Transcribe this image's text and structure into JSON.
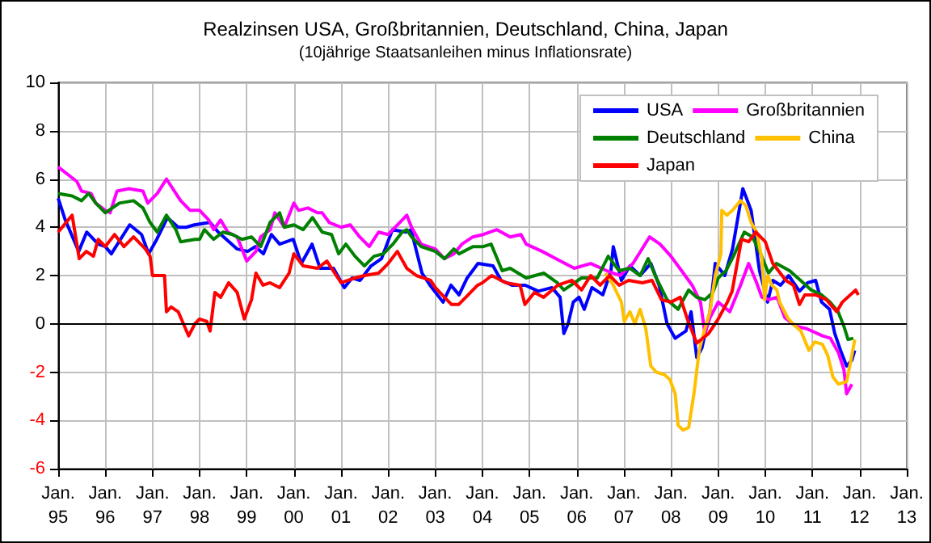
{
  "chart_data": {
    "type": "line",
    "title": "Realzinsen USA, Großbritannien, Deutschland, China, Japan",
    "subtitle": "(10jährige Staatsanleihen minus Inflationsrate)",
    "xlim": [
      "1995-01-01",
      "2013-01-01"
    ],
    "xticks": [
      {
        "value": "1995-01-01",
        "label": "Jan.\n95"
      },
      {
        "value": "1996-01-01",
        "label": "Jan.\n96"
      },
      {
        "value": "1997-01-01",
        "label": "Jan.\n97"
      },
      {
        "value": "1998-01-01",
        "label": "Jan.\n98"
      },
      {
        "value": "1999-01-01",
        "label": "Jan.\n99"
      },
      {
        "value": "2000-01-01",
        "label": "Jan.\n00"
      },
      {
        "value": "2001-01-01",
        "label": "Jan.\n01"
      },
      {
        "value": "2002-01-01",
        "label": "Jan.\n02"
      },
      {
        "value": "2003-01-01",
        "label": "Jan.\n03"
      },
      {
        "value": "2004-01-01",
        "label": "Jan.\n04"
      },
      {
        "value": "2005-01-01",
        "label": "Jan.\n05"
      },
      {
        "value": "2006-01-01",
        "label": "Jan.\n06"
      },
      {
        "value": "2007-01-01",
        "label": "Jan.\n07"
      },
      {
        "value": "2008-01-01",
        "label": "Jan.\n08"
      },
      {
        "value": "2009-01-01",
        "label": "Jan.\n09"
      },
      {
        "value": "2010-01-01",
        "label": "Jan.\n10"
      },
      {
        "value": "2011-01-01",
        "label": "Jan.\n11"
      },
      {
        "value": "2012-01-01",
        "label": "Jan.\n12"
      },
      {
        "value": "2013-01-01",
        "label": "Jan.\n13"
      }
    ],
    "ylim": [
      -6,
      10
    ],
    "yticks": [
      -6,
      -4,
      -2,
      0,
      2,
      4,
      6,
      8,
      10
    ],
    "grid": true,
    "legend": "top right",
    "marker": "none",
    "line_style": "solid",
    "ref_lines": [
      {
        "axis": "y",
        "value": 0,
        "color": "#000000"
      }
    ],
    "series": [
      {
        "name": "USA",
        "color": "#0000ff",
        "x": [
          "1995-01-01",
          "1995-02-25",
          "1995-06-09",
          "1995-08-10",
          "1995-11-07",
          "1996-01-01",
          "1996-02-17",
          "1996-07-08",
          "1996-10-08",
          "1996-12-02",
          "1997-02-03",
          "1997-04-26",
          "1997-07-19",
          "1997-09-20",
          "1997-11-21",
          "1998-03-23",
          "1998-05-25",
          "1998-10-19",
          "1999-01-08",
          "1999-03-09",
          "1999-05-10",
          "1999-07-11",
          "1999-09-13",
          "1999-12-27",
          "2000-02-28",
          "2000-05-21",
          "2000-07-22",
          "2000-11-03",
          "2001-01-26",
          "2001-03-27",
          "2001-05-28",
          "2001-08-21",
          "2001-11-10",
          "2002-02-03",
          "2002-05-17",
          "2002-06-27",
          "2002-09-20",
          "2002-11-21",
          "2003-03-02",
          "2003-05-03",
          "2003-07-04",
          "2003-09-05",
          "2003-11-28",
          "2004-03-23",
          "2004-05-25",
          "2004-08-17",
          "2004-11-28",
          "2005-03-09",
          "2005-06-23",
          "2005-08-25",
          "2005-09-23",
          "2005-10-26",
          "2005-12-05",
          "2006-01-19",
          "2006-02-28",
          "2006-04-29",
          "2006-07-22",
          "2006-09-23",
          "2006-10-11",
          "2006-12-13",
          "2007-02-17",
          "2007-05-07",
          "2007-07-29",
          "2007-10-01",
          "2007-12-02",
          "2008-02-03",
          "2008-04-26",
          "2008-06-05",
          "2008-07-19",
          "2008-08-28",
          "2008-10-29",
          "2008-12-09",
          "2009-02-21",
          "2009-04-22",
          "2009-07-11",
          "2009-09-13",
          "2009-11-17",
          "2010-01-19",
          "2010-02-28",
          "2010-04-29",
          "2010-07-01",
          "2010-09-23",
          "2010-11-25",
          "2011-01-26",
          "2011-03-13",
          "2011-05-14",
          "2011-06-23",
          "2011-08-07",
          "2011-09-23",
          "2011-11-03",
          "2011-11-25"
        ],
        "values": [
          5.2,
          4.3,
          3.0,
          3.8,
          3.3,
          3.2,
          2.9,
          4.1,
          3.7,
          2.9,
          3.5,
          4.4,
          4.0,
          4.0,
          4.1,
          4.2,
          3.8,
          3.1,
          3.0,
          3.2,
          2.9,
          3.7,
          3.3,
          3.5,
          2.5,
          3.3,
          2.3,
          2.3,
          1.5,
          1.9,
          1.8,
          2.4,
          2.7,
          3.9,
          3.8,
          3.9,
          2.1,
          1.6,
          0.9,
          1.6,
          1.2,
          1.9,
          2.5,
          2.4,
          1.8,
          1.6,
          1.6,
          1.35,
          1.5,
          1.1,
          -0.4,
          0,
          0.9,
          1.1,
          0.6,
          1.5,
          1.2,
          2.2,
          3.2,
          1.8,
          2.4,
          2.0,
          2.5,
          1.6,
          0,
          -0.6,
          -0.3,
          0.5,
          -1.4,
          -1.0,
          0.5,
          2.5,
          2.0,
          3.1,
          5.6,
          4.7,
          2.2,
          0.9,
          1.8,
          1.6,
          2.0,
          1.35,
          1.7,
          1.8,
          0.9,
          0.6,
          -0.4,
          -1.1,
          -1.75,
          -1.5,
          -1.1
        ]
      },
      {
        "name": "Großbritannien",
        "color": "#ff00ff",
        "x": [
          "1995-01-01",
          "1995-03-13",
          "1995-05-25",
          "1995-07-01",
          "1995-09-13",
          "1995-10-19",
          "1996-01-01",
          "1996-02-07",
          "1996-04-01",
          "1996-07-01",
          "1996-10-19",
          "1996-11-25",
          "1997-02-07",
          "1997-04-19",
          "1997-07-01",
          "1997-08-07",
          "1997-10-19",
          "1998-01-01",
          "1998-03-13",
          "1998-04-19",
          "1998-06-13",
          "1998-08-07",
          "1998-10-19",
          "1999-01-01",
          "1999-03-13",
          "1999-04-19",
          "1999-07-01",
          "1999-08-07",
          "1999-10-19",
          "2000-01-01",
          "2000-02-07",
          "2000-04-19",
          "2000-07-01",
          "2000-08-07",
          "2000-10-01",
          "2001-01-01",
          "2001-03-13",
          "2001-05-25",
          "2001-08-07",
          "2001-10-19",
          "2002-01-01",
          "2002-04-19",
          "2002-05-25",
          "2002-07-01",
          "2002-09-13",
          "2003-01-01",
          "2003-03-13",
          "2003-05-25",
          "2003-07-26",
          "2003-10-19",
          "2004-01-08",
          "2004-04-22",
          "2004-08-03",
          "2004-10-26",
          "2004-12-05",
          "2005-04-08",
          "2005-07-22",
          "2005-12-13",
          "2006-04-19",
          "2006-08-21",
          "2006-12-02",
          "2007-03-13",
          "2007-07-19",
          "2007-10-08",
          "2008-01-01",
          "2008-03-23",
          "2008-06-13",
          "2008-08-17",
          "2008-09-20",
          "2008-10-29",
          "2009-01-01",
          "2009-04-01",
          "2009-06-23",
          "2009-08-25",
          "2009-10-26",
          "2009-12-05",
          "2010-01-29",
          "2010-04-01",
          "2010-06-02",
          "2010-08-25",
          "2010-11-17",
          "2011-03-20",
          "2011-05-21",
          "2011-07-22",
          "2011-09-02",
          "2011-09-23",
          "2011-11-03"
        ],
        "values": [
          6.5,
          6.2,
          5.9,
          5.5,
          5.4,
          5.0,
          4.7,
          4.6,
          5.5,
          5.6,
          5.5,
          5.0,
          5.4,
          6.0,
          5.4,
          5.1,
          4.7,
          4.7,
          4.3,
          3.9,
          4.3,
          3.8,
          3.6,
          2.6,
          3.0,
          3.6,
          3.9,
          4.6,
          4.0,
          5.0,
          4.7,
          4.8,
          4.6,
          4.6,
          4.2,
          4.0,
          4.1,
          3.6,
          3.2,
          3.8,
          3.7,
          4.3,
          4.5,
          4.0,
          3.3,
          3.1,
          2.7,
          2.9,
          3.3,
          3.6,
          3.7,
          3.9,
          3.6,
          3.7,
          3.3,
          3.0,
          2.7,
          2.3,
          2.5,
          2.2,
          2.0,
          2.5,
          3.6,
          3.3,
          2.8,
          2.2,
          1.6,
          0.9,
          -0.4,
          0.25,
          0.9,
          0.5,
          1.6,
          2.5,
          1.7,
          1.1,
          1.0,
          1.1,
          0.25,
          -0.1,
          -0.2,
          -0.5,
          -0.6,
          -1.2,
          -1.9,
          -2.9,
          -2.5
        ]
      },
      {
        "name": "Deutschland",
        "color": "#008000",
        "x": [
          "1995-01-01",
          "1995-04-19",
          "1995-07-01",
          "1995-08-25",
          "1995-10-19",
          "1996-01-01",
          "1996-04-19",
          "1996-08-07",
          "1996-10-19",
          "1996-12-13",
          "1997-02-07",
          "1997-04-19",
          "1997-07-01",
          "1997-08-07",
          "1997-11-25",
          "1998-01-01",
          "1998-02-07",
          "1998-04-19",
          "1998-07-01",
          "1998-09-13",
          "1998-11-25",
          "1999-02-07",
          "1999-04-19",
          "1999-07-01",
          "1999-09-13",
          "1999-10-19",
          "2000-01-01",
          "2000-03-13",
          "2000-05-25",
          "2000-08-07",
          "2000-10-19",
          "2000-12-13",
          "2001-02-07",
          "2001-04-19",
          "2001-07-01",
          "2001-09-13",
          "2001-11-25",
          "2002-02-07",
          "2002-04-19",
          "2002-05-25",
          "2002-07-01",
          "2002-09-13",
          "2003-01-01",
          "2003-03-13",
          "2003-05-25",
          "2003-07-04",
          "2003-10-19",
          "2004-01-08",
          "2004-03-09",
          "2004-06-02",
          "2004-08-03",
          "2004-12-05",
          "2005-04-22",
          "2005-08-03",
          "2005-09-23",
          "2006-02-07",
          "2006-06-09",
          "2006-09-02",
          "2006-11-25",
          "2007-02-17",
          "2007-05-07",
          "2007-07-08",
          "2007-09-09",
          "2007-12-02",
          "2008-02-25",
          "2008-05-17",
          "2008-07-19",
          "2008-09-20",
          "2008-11-21",
          "2009-01-01",
          "2009-03-02",
          "2009-04-29",
          "2009-07-22",
          "2009-09-23",
          "2009-11-25",
          "2010-01-26",
          "2010-03-27",
          "2010-07-08",
          "2010-10-01",
          "2010-12-23",
          "2011-03-13",
          "2011-05-17",
          "2011-07-19",
          "2011-09-02",
          "2011-10-04",
          "2011-11-14"
        ],
        "values": [
          5.4,
          5.3,
          5.1,
          5.4,
          5.0,
          4.6,
          5.0,
          5.1,
          4.8,
          4.2,
          3.8,
          4.5,
          3.9,
          3.4,
          3.5,
          3.5,
          3.9,
          3.5,
          3.8,
          3.7,
          3.5,
          3.6,
          3.2,
          4.2,
          4.6,
          4.0,
          4.1,
          3.9,
          4.4,
          3.8,
          3.7,
          2.9,
          3.3,
          2.8,
          2.4,
          2.8,
          2.9,
          3.3,
          3.8,
          3.9,
          3.6,
          3.2,
          3.0,
          2.7,
          3.1,
          2.9,
          3.2,
          3.2,
          3.3,
          2.2,
          2.3,
          1.9,
          2.1,
          1.7,
          1.4,
          1.9,
          1.9,
          2.8,
          2.2,
          2.3,
          2.0,
          2.7,
          1.9,
          1.0,
          0.6,
          1.4,
          1.1,
          1.0,
          1.3,
          1.9,
          2.2,
          2.8,
          3.8,
          3.6,
          2.9,
          2.1,
          2.5,
          2.2,
          1.8,
          1.4,
          1.2,
          0.9,
          0.5,
          -0.1,
          -0.65,
          -0.6
        ]
      },
      {
        "name": "China",
        "color": "#ffc000",
        "x": [
          "2006-08-10",
          "2006-10-11",
          "2006-12-13",
          "2007-01-04",
          "2007-02-17",
          "2007-03-27",
          "2007-05-07",
          "2007-06-20",
          "2007-07-29",
          "2007-09-09",
          "2007-11-10",
          "2007-12-23",
          "2008-02-03",
          "2008-02-25",
          "2008-04-04",
          "2008-05-17",
          "2008-06-27",
          "2008-08-07",
          "2008-09-20",
          "2008-10-29",
          "2008-12-09",
          "2009-01-22",
          "2009-01-29",
          "2009-03-09",
          "2009-04-22",
          "2009-06-23",
          "2009-08-03",
          "2009-09-13",
          "2009-10-26",
          "2009-12-05",
          "2009-12-27",
          "2010-01-19",
          "2010-02-21",
          "2010-04-01",
          "2010-04-22",
          "2010-06-23",
          "2010-08-03",
          "2010-10-04",
          "2010-12-05",
          "2011-01-19",
          "2011-03-20",
          "2011-04-29",
          "2011-06-09",
          "2011-07-22",
          "2011-09-23",
          "2011-11-03",
          "2011-11-25"
        ],
        "values": [
          2.1,
          1.6,
          0.9,
          0.1,
          0.5,
          0,
          0.6,
          -0.2,
          -1.75,
          -2.0,
          -2.1,
          -2.3,
          -2.9,
          -4.2,
          -4.4,
          -4.3,
          -2.9,
          -1.1,
          -0.2,
          0.5,
          2.0,
          2.9,
          4.7,
          4.5,
          4.7,
          5.1,
          4.9,
          4.2,
          3.8,
          2.7,
          1.0,
          2.0,
          1.6,
          1.4,
          0.9,
          0.25,
          0,
          -0.3,
          -1.1,
          -0.75,
          -0.85,
          -1.3,
          -2.2,
          -2.5,
          -2.4,
          -1.3,
          -0.65
        ]
      },
      {
        "name": "Japan",
        "color": "#ff0000",
        "x": [
          "1995-01-01",
          "1995-04-19",
          "1995-06-13",
          "1995-08-07",
          "1995-10-01",
          "1995-11-07",
          "1996-01-01",
          "1996-03-13",
          "1996-05-25",
          "1996-08-07",
          "1996-11-07",
          "1996-12-13",
          "1997-01-01",
          "1997-04-04",
          "1997-04-19",
          "1997-05-25",
          "1997-07-19",
          "1997-10-08",
          "1997-11-25",
          "1998-01-01",
          "1998-02-25",
          "1998-03-23",
          "1998-04-29",
          "1998-06-13",
          "1998-08-14",
          "1998-10-19",
          "1998-12-13",
          "1999-02-07",
          "1999-03-13",
          "1999-05-07",
          "1999-07-01",
          "1999-09-13",
          "1999-11-25",
          "2000-01-01",
          "2000-03-13",
          "2000-07-01",
          "2000-09-13",
          "2000-11-25",
          "2001-01-01",
          "2001-04-19",
          "2001-07-01",
          "2001-10-19",
          "2002-01-01",
          "2002-03-13",
          "2002-05-25",
          "2002-08-07",
          "2002-11-25",
          "2003-01-01",
          "2003-03-13",
          "2003-05-07",
          "2003-07-01",
          "2003-09-13",
          "2003-11-25",
          "2004-01-01",
          "2004-03-13",
          "2004-07-01",
          "2004-10-19",
          "2004-11-25",
          "2005-02-07",
          "2005-04-19",
          "2005-08-07",
          "2005-11-25",
          "2006-02-07",
          "2006-04-19",
          "2006-07-01",
          "2006-09-13",
          "2006-11-25",
          "2007-02-07",
          "2007-05-25",
          "2007-08-07",
          "2007-10-19",
          "2008-01-01",
          "2008-03-13",
          "2008-05-07",
          "2008-07-19",
          "2008-10-19",
          "2009-01-01",
          "2009-03-13",
          "2009-04-19",
          "2009-07-01",
          "2009-08-25",
          "2009-10-19",
          "2010-01-01",
          "2010-02-28",
          "2010-06-09",
          "2010-08-07",
          "2010-09-23",
          "2010-11-03",
          "2011-01-26",
          "2011-04-19",
          "2011-07-08",
          "2011-08-21",
          "2011-12-02",
          "2011-12-23"
        ],
        "values": [
          3.8,
          4.5,
          2.7,
          3.0,
          2.8,
          3.5,
          3.2,
          3.7,
          3.2,
          3.6,
          3.1,
          2.8,
          2.0,
          2.0,
          0.5,
          0.7,
          0.5,
          -0.5,
          0.0,
          0.2,
          0.1,
          -0.3,
          1.3,
          1.1,
          1.7,
          1.3,
          0.2,
          1.0,
          2.1,
          1.6,
          1.7,
          1.5,
          2.1,
          2.9,
          2.4,
          2.3,
          2.6,
          2.0,
          1.7,
          1.9,
          2.0,
          2.1,
          2.5,
          3.0,
          2.3,
          2.0,
          1.8,
          1.5,
          1.1,
          0.8,
          0.8,
          1.2,
          1.6,
          1.7,
          2.0,
          1.7,
          1.6,
          0.8,
          1.3,
          1.1,
          1.6,
          1.8,
          1.4,
          2.0,
          1.6,
          2.0,
          1.6,
          1.8,
          1.7,
          1.8,
          1.0,
          0.9,
          1.1,
          0.2,
          -0.8,
          -0.4,
          0.2,
          0.9,
          1.35,
          3.5,
          3.4,
          3.8,
          3.4,
          2.5,
          1.8,
          1.6,
          0.8,
          1.2,
          1.2,
          1.0,
          0.5,
          0.9,
          1.4,
          1.2
        ]
      }
    ]
  }
}
